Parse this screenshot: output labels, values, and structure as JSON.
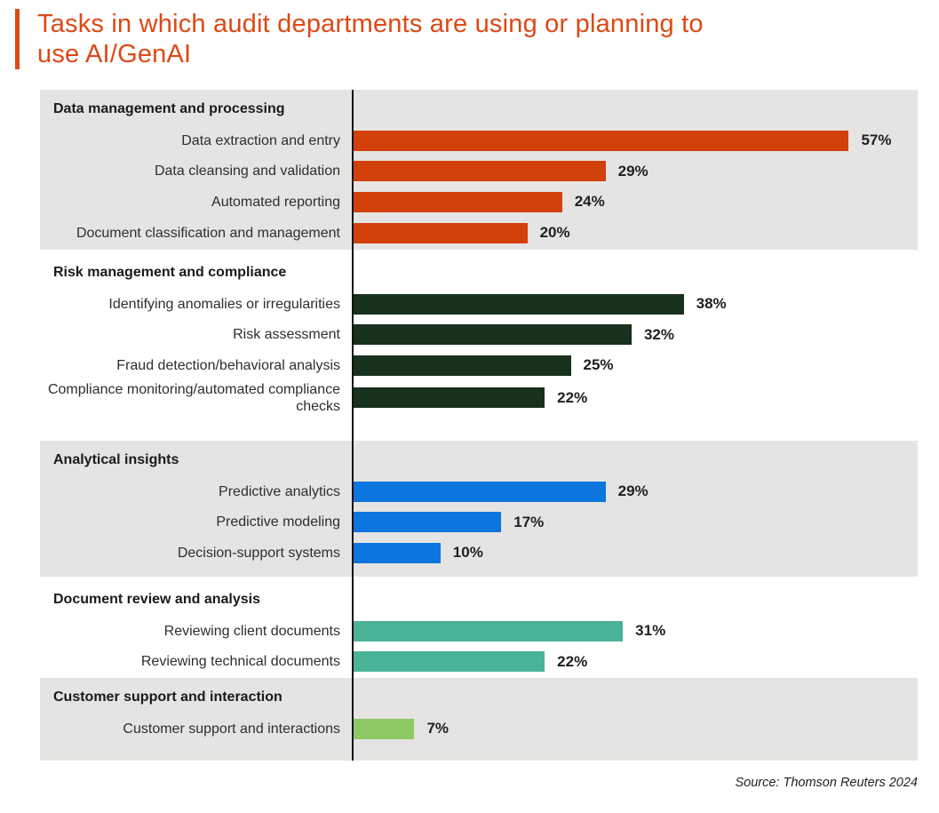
{
  "header": {
    "title_line1": "Tasks in which audit departments are using or planning to",
    "title_line2": "use AI/GenAI"
  },
  "source": "Source: Thomson Reuters 2024",
  "colors": {
    "title": "#DE4815",
    "accent_bar": "#DE4815",
    "band_gray": "#E5E4E2",
    "band_white": "#FFFFFF",
    "axis": "#111111",
    "value_text": "#1F1F23"
  },
  "chart_data": {
    "type": "bar",
    "orientation": "horizontal",
    "title": "Tasks in which audit departments are using or planning to use AI/GenAI",
    "value_unit": "%",
    "xlim": [
      0,
      65
    ],
    "grid": false,
    "legend": false,
    "groups": [
      {
        "name": "Data management and processing",
        "color": "#D2400C",
        "items": [
          {
            "label": "Data extraction and entry",
            "value": 57
          },
          {
            "label": "Data cleansing and validation",
            "value": 29
          },
          {
            "label": "Automated reporting",
            "value": 24
          },
          {
            "label": "Document classification and management",
            "value": 20
          }
        ]
      },
      {
        "name": "Risk management and compliance",
        "color": "#17311C",
        "items": [
          {
            "label": "Identifying anomalies or irregularities",
            "value": 38
          },
          {
            "label": "Risk assessment",
            "value": 32
          },
          {
            "label": "Fraud detection/behavioral analysis",
            "value": 25
          },
          {
            "label": "Compliance monitoring/automated compliance checks",
            "value": 22
          }
        ]
      },
      {
        "name": "Analytical insights",
        "color": "#0D75DE",
        "items": [
          {
            "label": "Predictive analytics",
            "value": 29
          },
          {
            "label": "Predictive modeling",
            "value": 17
          },
          {
            "label": "Decision-support systems",
            "value": 10
          }
        ]
      },
      {
        "name": "Document review and analysis",
        "color": "#4BB29A",
        "items": [
          {
            "label": "Reviewing client documents",
            "value": 31
          },
          {
            "label": "Reviewing technical documents",
            "value": 22
          }
        ]
      },
      {
        "name": "Customer support and interaction",
        "color": "#8CC963",
        "items": [
          {
            "label": "Customer support and interactions",
            "value": 7
          }
        ]
      }
    ]
  }
}
